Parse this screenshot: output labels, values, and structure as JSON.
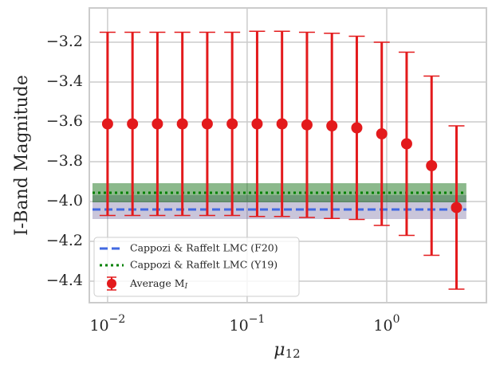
{
  "chart_data": {
    "type": "errorbar",
    "x_label": "μ",
    "x_label_subscript": "12",
    "y_label": "I-Band Magnitude",
    "log_x": true,
    "grid": true,
    "legend_position": "lower left",
    "xlim": [
      0.0074,
      5.18
    ],
    "ylim": [
      -4.508,
      -3.028
    ],
    "xticks": [
      {
        "value": 0.01,
        "label": "10",
        "exponent": "−2"
      },
      {
        "value": 0.1,
        "label": "10",
        "exponent": "−1"
      },
      {
        "value": 1,
        "label": "10",
        "exponent": "0"
      }
    ],
    "yticks": [
      {
        "value": -3.2,
        "label": "−3.2"
      },
      {
        "value": -3.4,
        "label": "−3.4"
      },
      {
        "value": -3.6,
        "label": "−3.6"
      },
      {
        "value": -3.8,
        "label": "−3.8"
      },
      {
        "value": -4.0,
        "label": "−4.0"
      },
      {
        "value": -4.2,
        "label": "−4.2"
      },
      {
        "value": -4.4,
        "label": "−4.4"
      }
    ],
    "bands": [
      {
        "color": "rgba(100,90,150,0.35)",
        "range": [
          -4.088,
          -3.968
        ],
        "x_range": [
          0.0078,
          3.72
        ]
      },
      {
        "color": "rgba(0,100,0,0.45)",
        "range": [
          -4.004,
          -3.908
        ],
        "x_range": [
          0.0078,
          3.72
        ]
      }
    ],
    "reference_lines": [
      {
        "name": "Cappozi & Raffelt LMC (F20)",
        "color": "#4169e1",
        "style": "dashed",
        "value": -4.04,
        "x_range": [
          0.0078,
          3.72
        ]
      },
      {
        "name": "Cappozi & Raffelt LMC (Y19)",
        "color": "#008000",
        "style": "dotted",
        "value": -3.956,
        "x_range": [
          0.0078,
          3.72
        ]
      }
    ],
    "series": [
      {
        "name": "Average M",
        "name_subscript": "I",
        "color": "#e31a1c",
        "x": [
          0.01,
          0.01509,
          0.02276,
          0.03434,
          0.05179,
          0.07813,
          0.1179,
          0.1778,
          0.2683,
          0.4047,
          0.6105,
          0.9211,
          1.389,
          2.096,
          3.162
        ],
        "values": [
          -3.61,
          -3.61,
          -3.61,
          -3.61,
          -3.61,
          -3.61,
          -3.61,
          -3.61,
          -3.615,
          -3.62,
          -3.63,
          -3.66,
          -3.71,
          -3.82,
          -4.03
        ],
        "errors": [
          0.46,
          0.46,
          0.46,
          0.46,
          0.46,
          0.46,
          0.465,
          0.465,
          0.465,
          0.465,
          0.46,
          0.46,
          0.46,
          0.45,
          0.41
        ]
      }
    ]
  }
}
